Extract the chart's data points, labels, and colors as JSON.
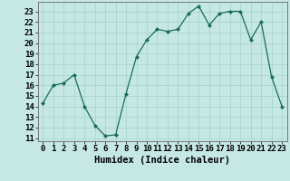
{
  "x": [
    0,
    1,
    2,
    3,
    4,
    5,
    6,
    7,
    8,
    9,
    10,
    11,
    12,
    13,
    14,
    15,
    16,
    17,
    18,
    19,
    20,
    21,
    22,
    23
  ],
  "y": [
    14.3,
    16.0,
    16.2,
    17.0,
    14.0,
    12.2,
    11.2,
    11.3,
    15.2,
    18.7,
    20.3,
    21.3,
    21.1,
    21.3,
    22.8,
    23.5,
    21.7,
    22.8,
    23.0,
    23.0,
    20.3,
    22.0,
    16.8,
    14.0
  ],
  "xlabel": "Humidex (Indice chaleur)",
  "bg_color": "#c5e8e5",
  "grid_color": "#aad4d0",
  "line_color": "#1a6b5a",
  "marker_color": "#1a6b5a",
  "ylim": [
    10.7,
    23.9
  ],
  "xlim": [
    -0.5,
    23.5
  ],
  "yticks": [
    11,
    12,
    13,
    14,
    15,
    16,
    17,
    18,
    19,
    20,
    21,
    22,
    23
  ],
  "xticks": [
    0,
    1,
    2,
    3,
    4,
    5,
    6,
    7,
    8,
    9,
    10,
    11,
    12,
    13,
    14,
    15,
    16,
    17,
    18,
    19,
    20,
    21,
    22,
    23
  ],
  "xlabel_fontsize": 7.5,
  "tick_fontsize": 6.5
}
